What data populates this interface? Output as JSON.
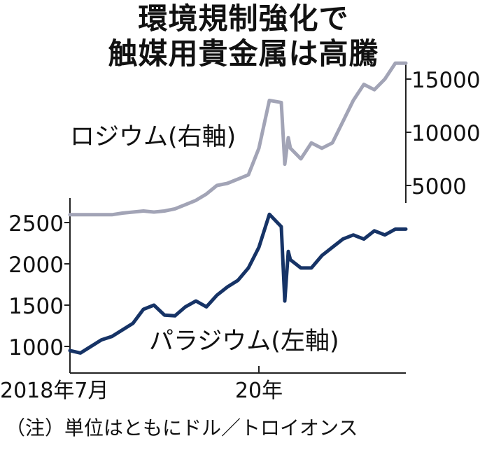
{
  "title": {
    "line1": "環境規制強化で",
    "line2": "触媒用貴金属は高騰"
  },
  "note": "（注）単位はともにドル／トロイオンス",
  "colors": {
    "rhodium": "#a2a4b6",
    "palladium": "#163366",
    "axis": "#222222",
    "text": "#111111"
  },
  "chart_data": {
    "type": "line",
    "x_axis": {
      "tick_labels": [
        "2018年7月",
        "20年"
      ],
      "tick_dates": [
        "2018-07",
        "2020-01"
      ],
      "range": [
        "2018-07",
        "2021-03"
      ]
    },
    "left_axis": {
      "ticks": [
        1000,
        1500,
        2000,
        2500
      ]
    },
    "right_axis": {
      "ticks": [
        5000,
        10000,
        15000
      ]
    },
    "series": [
      {
        "name": "ロジウム(右軸)",
        "axis": "right",
        "color": "#a2a4b6",
        "points": [
          [
            "2018-07",
            2250
          ],
          [
            "2018-09",
            2250
          ],
          [
            "2018-11",
            2250
          ],
          [
            "2018-12",
            2400
          ],
          [
            "2019-02",
            2600
          ],
          [
            "2019-03",
            2500
          ],
          [
            "2019-04",
            2600
          ],
          [
            "2019-05",
            2800
          ],
          [
            "2019-06",
            3200
          ],
          [
            "2019-07",
            3600
          ],
          [
            "2019-08",
            4200
          ],
          [
            "2019-09",
            5000
          ],
          [
            "2019-10",
            5200
          ],
          [
            "2019-11",
            5600
          ],
          [
            "2019-12",
            6000
          ],
          [
            "2020-01",
            8500
          ],
          [
            "2020-02",
            13000
          ],
          [
            "2020-03-05",
            12800
          ],
          [
            "2020-03-15",
            7000
          ],
          [
            "2020-03-25",
            9500
          ],
          [
            "2020-04",
            8500
          ],
          [
            "2020-05",
            7500
          ],
          [
            "2020-06",
            9000
          ],
          [
            "2020-07",
            8500
          ],
          [
            "2020-08",
            9000
          ],
          [
            "2020-09",
            11000
          ],
          [
            "2020-10",
            13000
          ],
          [
            "2020-11",
            14500
          ],
          [
            "2020-12",
            14000
          ],
          [
            "2021-01",
            15000
          ],
          [
            "2021-02",
            16500
          ],
          [
            "2021-03",
            16500
          ]
        ]
      },
      {
        "name": "パラジウム(左軸)",
        "axis": "left",
        "color": "#163366",
        "points": [
          [
            "2018-07",
            950
          ],
          [
            "2018-08",
            920
          ],
          [
            "2018-09",
            1000
          ],
          [
            "2018-10",
            1080
          ],
          [
            "2018-11",
            1120
          ],
          [
            "2018-12",
            1200
          ],
          [
            "2019-01",
            1280
          ],
          [
            "2019-02",
            1450
          ],
          [
            "2019-03",
            1500
          ],
          [
            "2019-04",
            1380
          ],
          [
            "2019-05",
            1370
          ],
          [
            "2019-06",
            1480
          ],
          [
            "2019-07",
            1550
          ],
          [
            "2019-08",
            1480
          ],
          [
            "2019-09",
            1620
          ],
          [
            "2019-10",
            1720
          ],
          [
            "2019-11",
            1800
          ],
          [
            "2019-12",
            1950
          ],
          [
            "2020-01",
            2200
          ],
          [
            "2020-02",
            2600
          ],
          [
            "2020-03-05",
            2450
          ],
          [
            "2020-03-15",
            1550
          ],
          [
            "2020-03-25",
            2150
          ],
          [
            "2020-04",
            2050
          ],
          [
            "2020-05",
            1950
          ],
          [
            "2020-06",
            1950
          ],
          [
            "2020-07",
            2100
          ],
          [
            "2020-08",
            2200
          ],
          [
            "2020-09",
            2300
          ],
          [
            "2020-10",
            2350
          ],
          [
            "2020-11",
            2300
          ],
          [
            "2020-12",
            2400
          ],
          [
            "2021-01",
            2350
          ],
          [
            "2021-02",
            2420
          ],
          [
            "2021-03",
            2420
          ]
        ]
      }
    ]
  }
}
